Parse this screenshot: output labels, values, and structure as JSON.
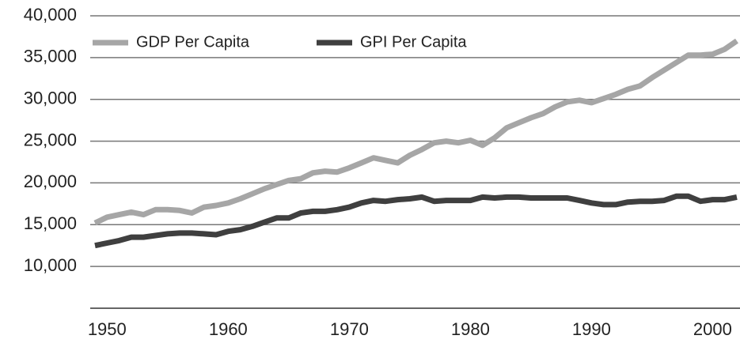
{
  "chart_data": {
    "type": "line",
    "x": [
      1949,
      1950,
      1951,
      1952,
      1953,
      1954,
      1955,
      1956,
      1957,
      1958,
      1959,
      1960,
      1961,
      1962,
      1963,
      1964,
      1965,
      1966,
      1967,
      1968,
      1969,
      1970,
      1971,
      1972,
      1973,
      1974,
      1975,
      1976,
      1977,
      1978,
      1979,
      1980,
      1981,
      1982,
      1983,
      1984,
      1985,
      1986,
      1987,
      1988,
      1989,
      1990,
      1991,
      1992,
      1993,
      1994,
      1995,
      1996,
      1997,
      1998,
      1999,
      2000,
      2001,
      2002
    ],
    "series": [
      {
        "name": "GDP Per Capita",
        "color": "#a6a6a6",
        "values": [
          15200,
          15900,
          16200,
          16500,
          16200,
          16800,
          16800,
          16700,
          16400,
          17100,
          17300,
          17600,
          18100,
          18700,
          19300,
          19800,
          20300,
          20500,
          21200,
          21400,
          21300,
          21800,
          22400,
          23000,
          22700,
          22400,
          23300,
          24000,
          24800,
          25000,
          24800,
          25100,
          24500,
          25400,
          26600,
          27200,
          27800,
          28300,
          29100,
          29700,
          29900,
          29600,
          30100,
          30600,
          31200,
          31600,
          32600,
          33500,
          34400,
          35300,
          35300,
          35400,
          36000,
          37000
        ]
      },
      {
        "name": "GPI Per Capita",
        "color": "#3f3f3f",
        "values": [
          12500,
          12800,
          13100,
          13500,
          13500,
          13700,
          13900,
          14000,
          14000,
          13900,
          13800,
          14200,
          14400,
          14800,
          15300,
          15800,
          15800,
          16400,
          16600,
          16600,
          16800,
          17100,
          17600,
          17900,
          17800,
          18000,
          18100,
          18300,
          17800,
          17900,
          17900,
          17900,
          18300,
          18200,
          18300,
          18300,
          18200,
          18200,
          18200,
          18200,
          17900,
          17600,
          17400,
          17400,
          17700,
          17800,
          17800,
          17900,
          18400,
          18400,
          17800,
          18000,
          18000,
          18300
        ]
      }
    ],
    "xlim": [
      1949,
      2002
    ],
    "xticks": [
      1950,
      1960,
      1970,
      1980,
      1990,
      2000
    ],
    "ylim": [
      5000,
      40000
    ],
    "yticks": [
      {
        "value": 10000,
        "label": "10,000"
      },
      {
        "value": 15000,
        "label": "15,000"
      },
      {
        "value": 20000,
        "label": "20,000"
      },
      {
        "value": 25000,
        "label": "25,000"
      },
      {
        "value": 30000,
        "label": "30,000"
      },
      {
        "value": 35000,
        "label": "35,000"
      },
      {
        "value": 40000,
        "label": "40,000"
      }
    ],
    "grid": true,
    "legend": "top-left"
  }
}
